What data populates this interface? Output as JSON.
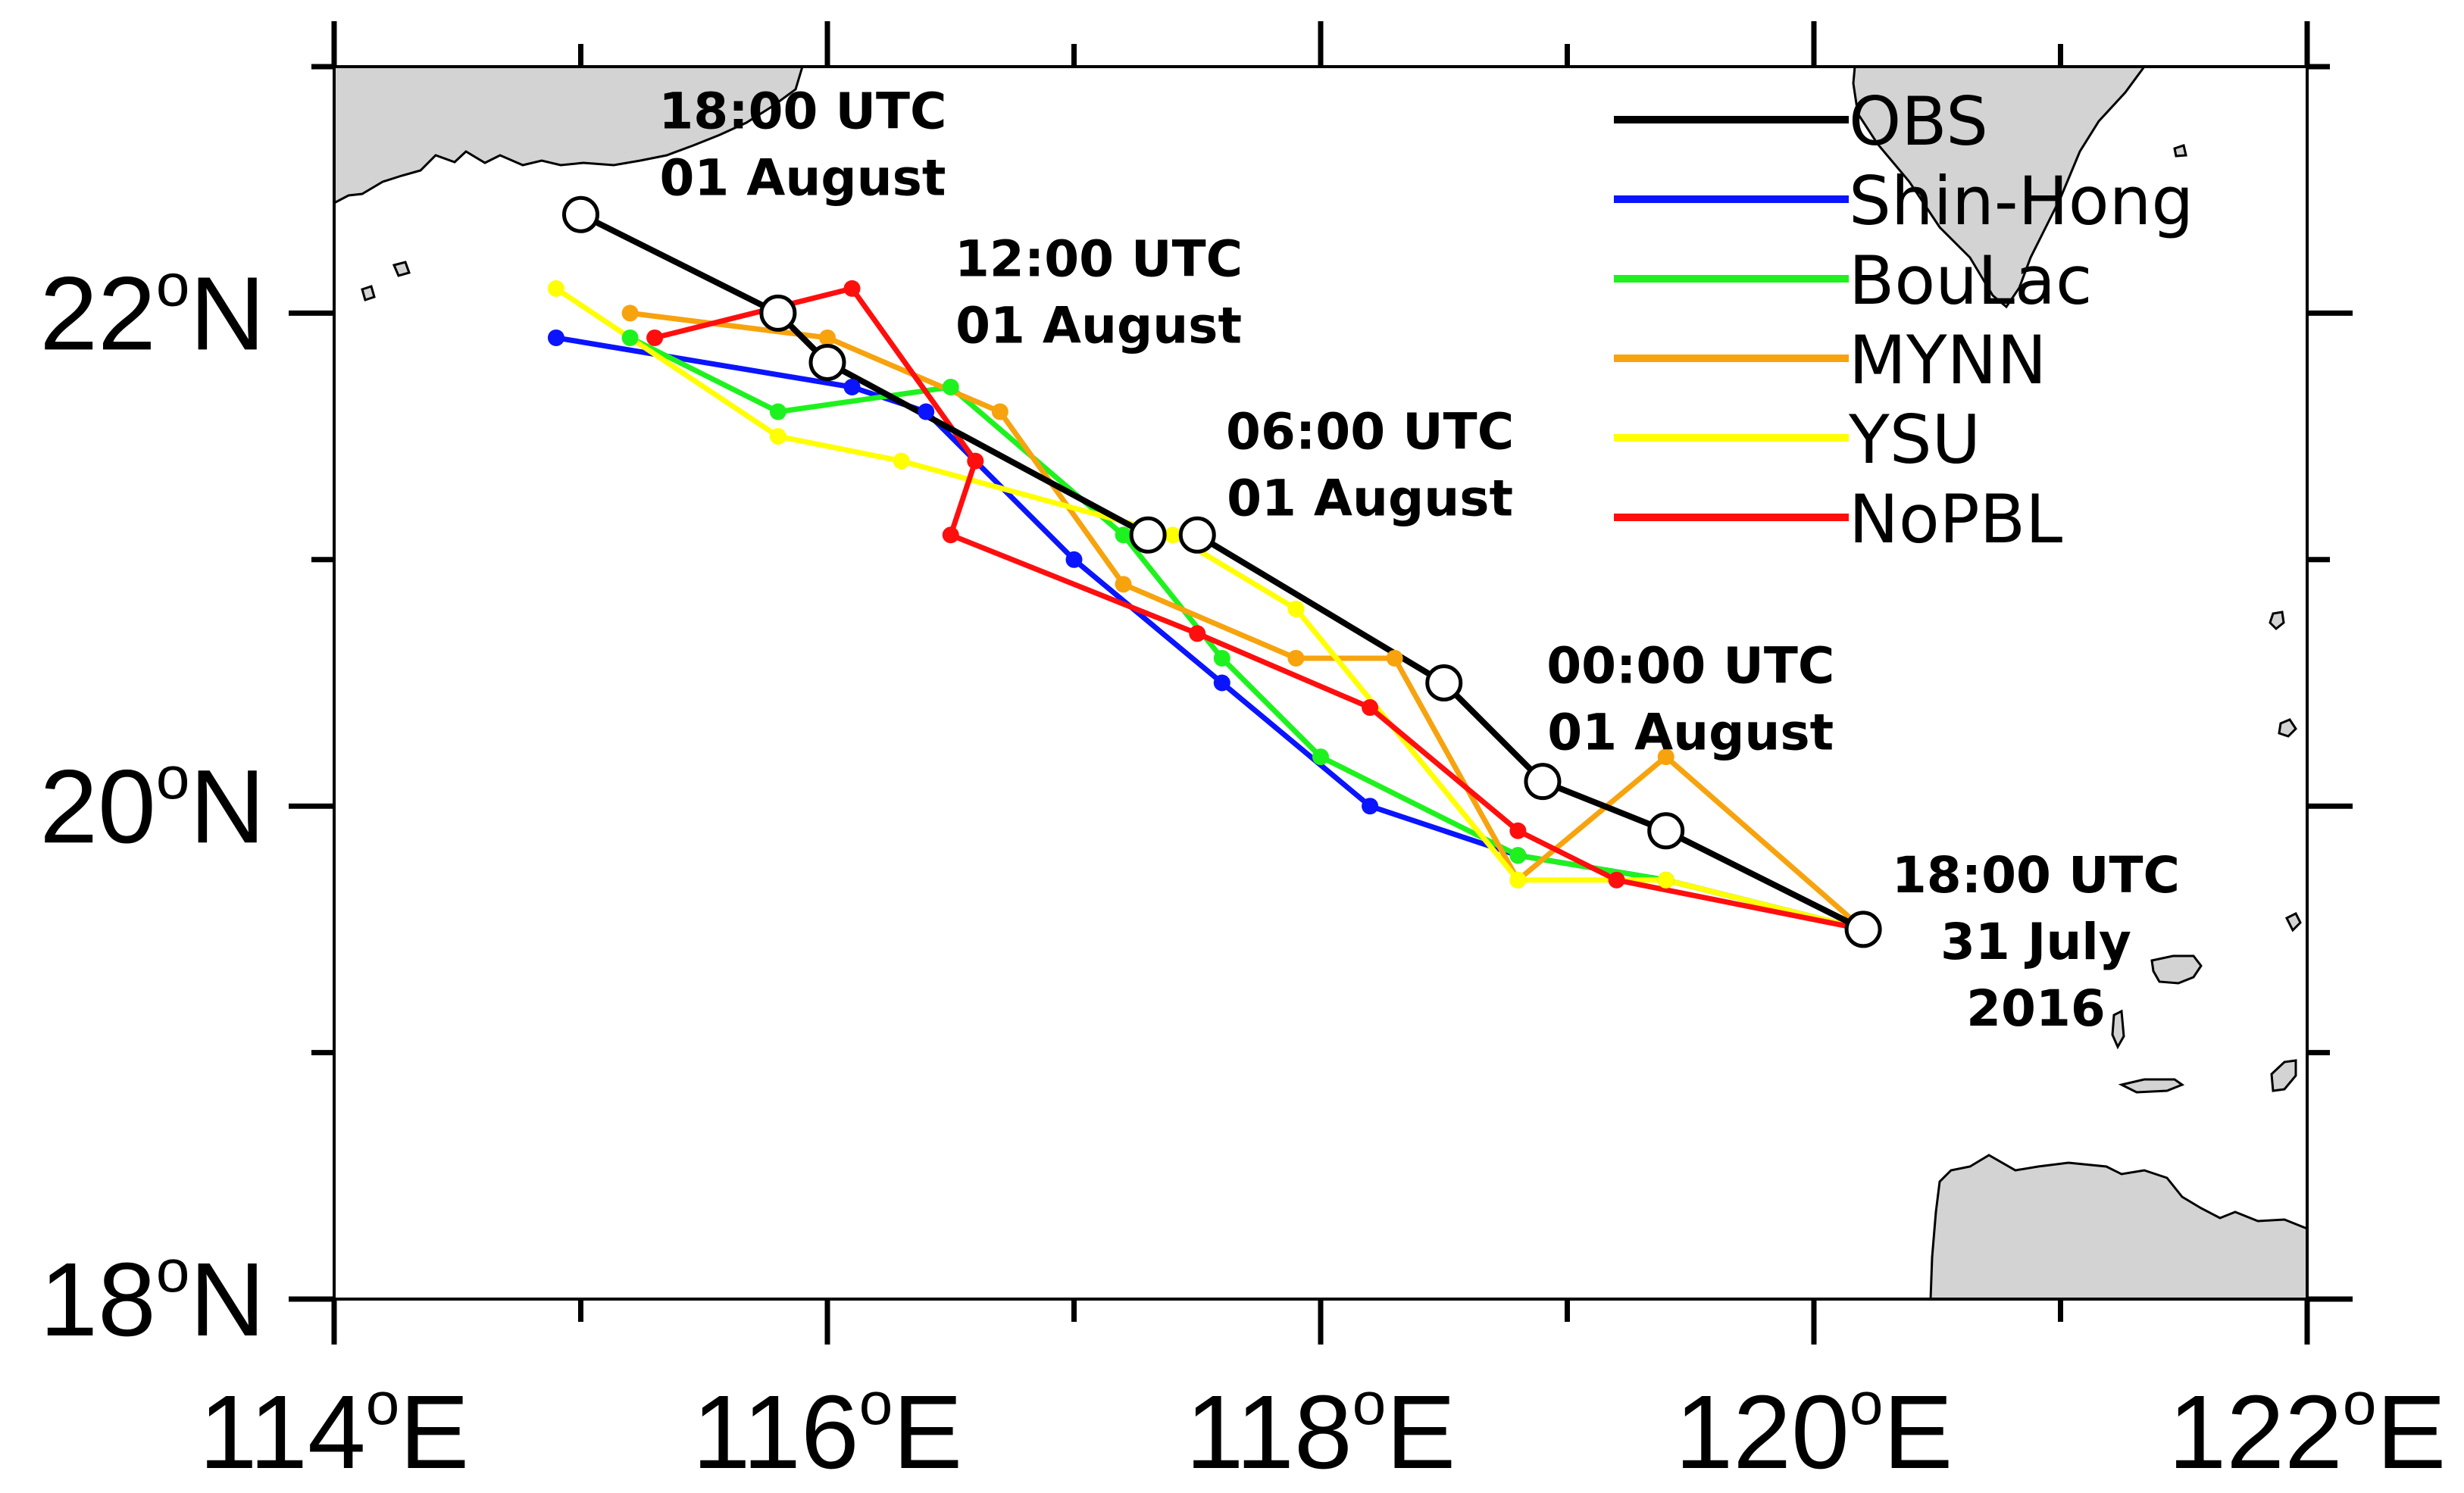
{
  "chart_data": {
    "type": "line",
    "title": "",
    "xlabel": "",
    "ylabel": "",
    "xlim": [
      114,
      122
    ],
    "ylim": [
      18,
      23
    ],
    "grid": false,
    "legend_position": "top-right",
    "x_ticks": [
      {
        "value": 114,
        "label": "114",
        "unit": "E"
      },
      {
        "value": 116,
        "label": "116",
        "unit": "E"
      },
      {
        "value": 118,
        "label": "118",
        "unit": "E"
      },
      {
        "value": 120,
        "label": "120",
        "unit": "E"
      },
      {
        "value": 122,
        "label": "122",
        "unit": "E"
      }
    ],
    "y_ticks": [
      {
        "value": 18,
        "label": "18",
        "unit": "N"
      },
      {
        "value": 20,
        "label": "20",
        "unit": "N"
      },
      {
        "value": 22,
        "label": "22",
        "unit": "N"
      }
    ],
    "degree_symbol": "o",
    "series": [
      {
        "name": "OBS",
        "color": "#000000",
        "marker": "open-circle",
        "x": [
          120.2,
          119.4,
          118.9,
          118.5,
          117.5,
          117.3,
          116.0,
          115.8,
          115.0
        ],
        "y": [
          19.5,
          19.9,
          20.1,
          20.5,
          21.1,
          21.1,
          21.8,
          22.0,
          22.4
        ]
      },
      {
        "name": "Shin-Hong",
        "color": "#0a14ff",
        "marker": "dot",
        "x": [
          120.2,
          119.4,
          118.8,
          118.2,
          117.6,
          117.0,
          116.4,
          116.1,
          114.9
        ],
        "y": [
          19.5,
          19.7,
          19.8,
          20.0,
          20.5,
          21.0,
          21.6,
          21.7,
          21.9
        ]
      },
      {
        "name": "BouLac",
        "color": "#1ef21e",
        "marker": "dot",
        "x": [
          120.2,
          119.4,
          118.8,
          118.0,
          117.6,
          117.2,
          116.5,
          115.8,
          115.2
        ],
        "y": [
          19.5,
          19.7,
          19.8,
          20.2,
          20.6,
          21.1,
          21.7,
          21.6,
          21.9
        ]
      },
      {
        "name": "MYNN",
        "color": "#f7a30e",
        "marker": "dot",
        "x": [
          120.2,
          119.4,
          118.8,
          118.3,
          117.9,
          117.2,
          116.7,
          116.0,
          115.2
        ],
        "y": [
          19.5,
          20.2,
          19.7,
          20.6,
          20.6,
          20.9,
          21.6,
          21.9,
          22.0
        ]
      },
      {
        "name": "YSU",
        "color": "#ffff00",
        "marker": "dot",
        "x": [
          120.2,
          119.4,
          118.8,
          117.9,
          117.4,
          116.3,
          115.8,
          114.9
        ],
        "y": [
          19.5,
          19.7,
          19.7,
          20.8,
          21.1,
          21.4,
          21.5,
          22.1
        ]
      },
      {
        "name": "NoPBL",
        "color": "#ff0e0e",
        "marker": "dot",
        "x": [
          120.2,
          119.2,
          118.8,
          118.2,
          117.5,
          116.5,
          116.6,
          116.1,
          115.3
        ],
        "y": [
          19.5,
          19.7,
          19.9,
          20.4,
          20.7,
          21.1,
          21.4,
          22.1,
          21.9
        ]
      }
    ],
    "annotations": [
      {
        "line1": "18:00 UTC",
        "line2": "01 August",
        "line3": "",
        "x": 115.9,
        "y": 22.75
      },
      {
        "line1": "12:00 UTC",
        "line2": "01 August",
        "line3": "",
        "x": 117.1,
        "y": 22.15
      },
      {
        "line1": "06:00 UTC",
        "line2": "01 August",
        "line3": "",
        "x": 118.2,
        "y": 21.45
      },
      {
        "line1": "00:00 UTC",
        "line2": "01 August",
        "line3": "",
        "x": 119.5,
        "y": 20.5
      },
      {
        "line1": "18:00 UTC",
        "line2": "31 July",
        "line3": "2016",
        "x": 120.9,
        "y": 19.65
      }
    ]
  }
}
